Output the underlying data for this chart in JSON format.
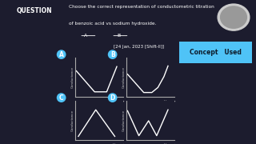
{
  "bg_color": "#1c1c2e",
  "banner_color": "#4a9fd4",
  "banner_text": "QUESTION",
  "title_line1": "Choose the correct representation of conductometric titration",
  "title_line2": "of benzoic acid vs sodium hydroxide.",
  "ref_text": "[24 Jan, 2023 [Shift-II]]",
  "concept_color": "#4fc3f7",
  "concept_text": "Concept   Used",
  "logo_color": "#888888",
  "divider_color": "#555566",
  "line_color": "#ffffff",
  "axis_color": "#aaaaaa",
  "label_color": "#cccccc",
  "option_circle_color": "#4fc3f7",
  "graph_bg": "#1c1c2e",
  "graph_a": {
    "x": [
      0.0,
      0.45,
      0.75,
      1.0
    ],
    "y": [
      0.75,
      0.12,
      0.12,
      0.88
    ]
  },
  "graph_b": {
    "x": [
      0.0,
      0.4,
      0.6,
      0.75,
      0.9,
      1.0
    ],
    "y": [
      0.65,
      0.1,
      0.1,
      0.25,
      0.58,
      0.9
    ]
  },
  "graph_c": {
    "x": [
      0.05,
      0.48,
      0.95
    ],
    "y": [
      0.08,
      0.88,
      0.08
    ]
  },
  "graph_d": {
    "x": [
      0.0,
      0.28,
      0.52,
      0.72,
      1.0
    ],
    "y": [
      0.85,
      0.1,
      0.55,
      0.1,
      0.88
    ]
  }
}
